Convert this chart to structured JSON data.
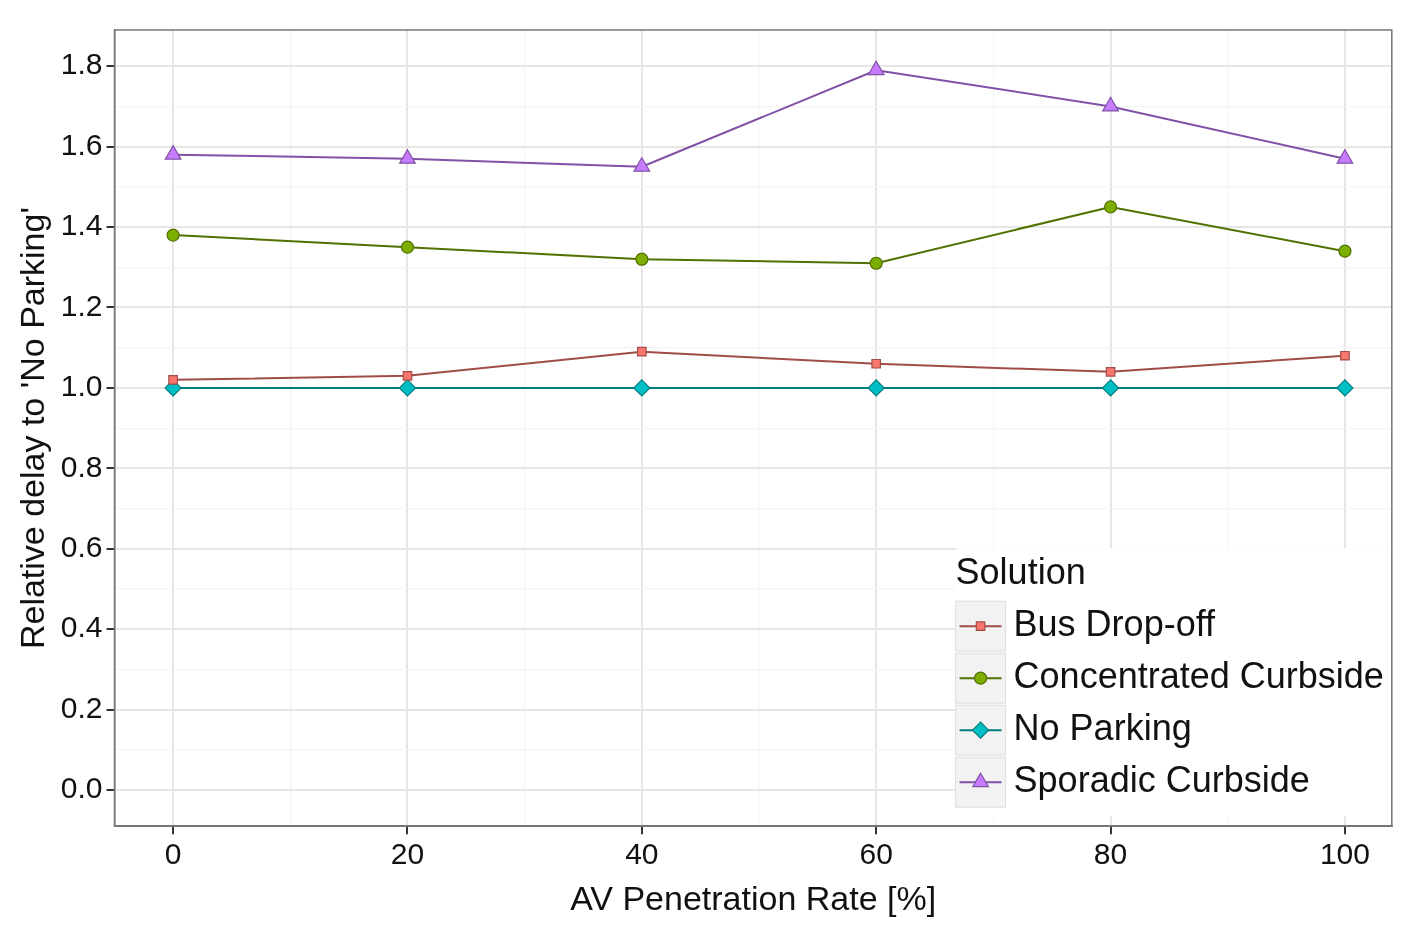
{
  "chart_data": {
    "type": "line",
    "xlabel": "AV Penetration Rate [%]",
    "ylabel": "Relative delay to 'No Parking'",
    "legend_title": "Solution",
    "x": [
      0,
      20,
      40,
      60,
      80,
      100
    ],
    "series": [
      {
        "name": "Bus Drop-off",
        "color": "#f8766d",
        "marker": "square",
        "values": [
          1.02,
          1.03,
          1.09,
          1.06,
          1.04,
          1.08
        ]
      },
      {
        "name": "Concentrated Curbside",
        "color": "#7cae00",
        "marker": "circle",
        "values": [
          1.38,
          1.35,
          1.32,
          1.31,
          1.45,
          1.34
        ]
      },
      {
        "name": "No Parking",
        "color": "#00bfc4",
        "marker": "diamond",
        "values": [
          1.0,
          1.0,
          1.0,
          1.0,
          1.0,
          1.0
        ]
      },
      {
        "name": "Sporadic Curbside",
        "color": "#c77cff",
        "marker": "triangle",
        "values": [
          1.58,
          1.57,
          1.55,
          1.79,
          1.7,
          1.57
        ]
      }
    ],
    "xlim": [
      -5,
      104
    ],
    "ylim": [
      -0.09,
      1.89
    ],
    "xticks": [
      0,
      {
        "value": 10,
        "label": null
      },
      20,
      {
        "value": 30,
        "label": null
      },
      40,
      {
        "value": 50,
        "label": null
      },
      60,
      {
        "value": 70,
        "label": null
      },
      80,
      {
        "value": 90,
        "label": null
      },
      100
    ],
    "yticks": [
      {
        "value": 0,
        "label": "0.0"
      },
      {
        "value": 0.1,
        "label": null
      },
      {
        "value": 0.2,
        "label": "0.2"
      },
      {
        "value": 0.3,
        "label": null
      },
      {
        "value": 0.4,
        "label": "0.4"
      },
      {
        "value": 0.5,
        "label": null
      },
      {
        "value": 0.6,
        "label": "0.6"
      },
      {
        "value": 0.7,
        "label": null
      },
      {
        "value": 0.8,
        "label": "0.8"
      },
      {
        "value": 0.9,
        "label": null
      },
      {
        "value": 1.0,
        "label": "1.0"
      },
      {
        "value": 1.1,
        "label": null
      },
      {
        "value": 1.2,
        "label": "1.2"
      },
      {
        "value": 1.3,
        "label": null
      },
      {
        "value": 1.4,
        "label": "1.4"
      },
      {
        "value": 1.5,
        "label": null
      },
      {
        "value": 1.6,
        "label": "1.6"
      },
      {
        "value": 1.7,
        "label": null
      },
      {
        "value": 1.8,
        "label": "1.8"
      }
    ],
    "grid": true,
    "legend": "bottom right",
    "line_style": "solid"
  }
}
